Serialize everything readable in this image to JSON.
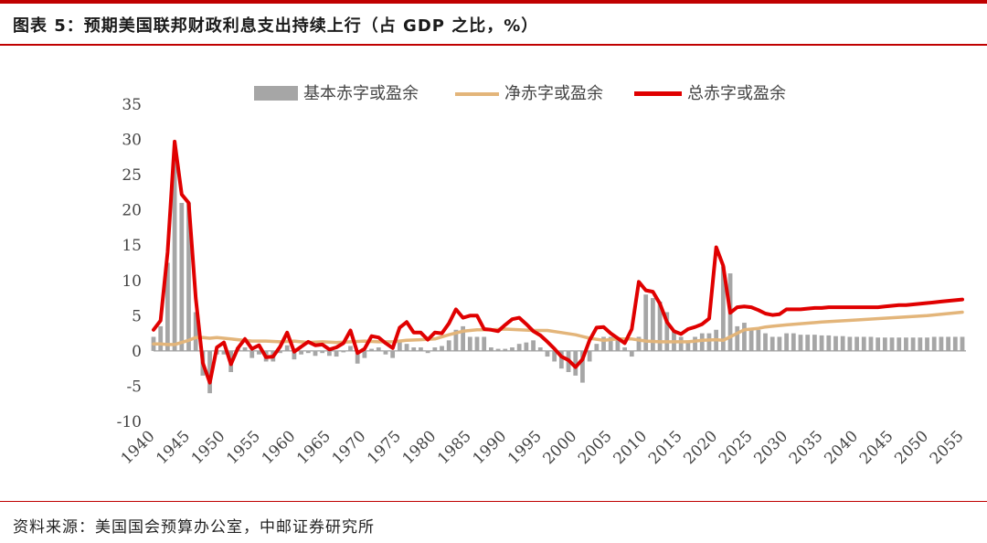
{
  "title": "图表 5：预期美国联邦财政利息支出持续上行（占 GDP 之比，%）",
  "source": "资料来源：美国国会预算办公室，中邮证券研究所",
  "colors": {
    "accent": "#c00000",
    "bar": "#a6a6a6",
    "net_line": "#e3b57a",
    "total_line": "#e00000"
  },
  "chart_data": {
    "type": "bar",
    "ylim": [
      -10,
      35
    ],
    "yticks": [
      35,
      30,
      25,
      20,
      15,
      10,
      5,
      0,
      -5,
      -10
    ],
    "xticks": [
      1940,
      1945,
      1950,
      1955,
      1960,
      1965,
      1970,
      1975,
      1980,
      1985,
      1990,
      1995,
      2000,
      2005,
      2010,
      2015,
      2020,
      2025,
      2030,
      2035,
      2040,
      2045,
      2050,
      2055
    ],
    "legend_position": "top-center",
    "grid": false,
    "series": [
      {
        "name": "基本赤字或盈余",
        "type": "bar",
        "x": [
          1940,
          1941,
          1942,
          1943,
          1944,
          1945,
          1946,
          1947,
          1948,
          1949,
          1950,
          1951,
          1952,
          1953,
          1954,
          1955,
          1956,
          1957,
          1958,
          1959,
          1960,
          1961,
          1962,
          1963,
          1964,
          1965,
          1966,
          1967,
          1968,
          1969,
          1970,
          1971,
          1972,
          1973,
          1974,
          1975,
          1976,
          1977,
          1978,
          1979,
          1980,
          1981,
          1982,
          1983,
          1984,
          1985,
          1986,
          1987,
          1988,
          1989,
          1990,
          1991,
          1992,
          1993,
          1994,
          1995,
          1996,
          1997,
          1998,
          1999,
          2000,
          2001,
          2002,
          2003,
          2004,
          2005,
          2006,
          2007,
          2008,
          2009,
          2010,
          2011,
          2012,
          2013,
          2014,
          2015,
          2016,
          2017,
          2018,
          2019,
          2020,
          2021,
          2022,
          2023,
          2024,
          2025,
          2026,
          2027,
          2028,
          2029,
          2030,
          2031,
          2032,
          2033,
          2034,
          2035,
          2036,
          2037,
          2038,
          2039,
          2040,
          2041,
          2042,
          2043,
          2044,
          2045,
          2046,
          2047,
          2048,
          2049,
          2050,
          2051,
          2052,
          2053,
          2054,
          2055
        ],
        "values": [
          2.0,
          3.5,
          12.5,
          28.5,
          21.0,
          21.0,
          5.5,
          -3.5,
          -6.0,
          -0.5,
          -0.5,
          -3.0,
          0.5,
          0.5,
          -1.0,
          -0.5,
          -1.5,
          -1.5,
          -0.3,
          0.8,
          -1.2,
          -0.5,
          -0.3,
          -0.7,
          -0.3,
          -0.7,
          -0.8,
          -0.2,
          0.7,
          -1.8,
          -1.0,
          0.3,
          0.5,
          -0.5,
          -1.0,
          1.5,
          1.0,
          0.5,
          0.5,
          -0.3,
          0.5,
          0.7,
          1.5,
          3.0,
          3.5,
          2.0,
          2.0,
          2.0,
          0.5,
          0.3,
          0.3,
          0.5,
          1.0,
          1.2,
          1.5,
          0.5,
          -0.8,
          -1.5,
          -2.5,
          -3.0,
          -3.5,
          -4.5,
          -1.5,
          1.0,
          2.0,
          2.0,
          1.5,
          0.5,
          -0.8,
          2.0,
          8.0,
          7.5,
          7.0,
          5.5,
          3.0,
          2.0,
          1.5,
          2.0,
          2.5,
          2.5,
          3.0,
          12.0,
          11.0,
          3.5,
          4.0,
          3.0,
          3.0,
          2.5,
          2.0,
          2.0,
          2.5,
          2.5,
          2.3,
          2.3,
          2.3,
          2.2,
          2.2,
          2.1,
          2.1,
          2.0,
          2.0,
          2.0,
          2.0,
          1.9,
          1.9,
          1.9,
          1.9,
          1.9,
          1.9,
          1.9,
          1.9,
          2.0,
          2.0,
          2.0,
          2.0,
          2.0
        ]
      },
      {
        "name": "净赤字或盈余",
        "type": "line",
        "x": [
          1940,
          1941,
          1942,
          1943,
          1944,
          1945,
          1946,
          1947,
          1948,
          1949,
          1950,
          1952,
          1954,
          1956,
          1958,
          1960,
          1962,
          1964,
          1966,
          1968,
          1970,
          1972,
          1974,
          1976,
          1978,
          1980,
          1982,
          1984,
          1986,
          1988,
          1990,
          1992,
          1994,
          1996,
          1998,
          2000,
          2002,
          2004,
          2006,
          2008,
          2010,
          2012,
          2014,
          2016,
          2018,
          2020,
          2021,
          2022,
          2023,
          2024,
          2025,
          2026,
          2027,
          2028,
          2029,
          2030,
          2035,
          2040,
          2045,
          2050,
          2055
        ],
        "values": [
          1.0,
          1.0,
          0.9,
          0.9,
          1.2,
          1.5,
          1.9,
          1.9,
          1.8,
          1.9,
          1.8,
          1.6,
          1.4,
          1.4,
          1.3,
          1.4,
          1.2,
          1.3,
          1.2,
          1.3,
          1.4,
          1.3,
          1.3,
          1.5,
          1.6,
          1.7,
          2.3,
          2.8,
          3.0,
          3.0,
          3.1,
          3.0,
          2.9,
          2.9,
          2.6,
          2.3,
          1.8,
          1.5,
          1.7,
          1.7,
          1.4,
          1.3,
          1.3,
          1.3,
          1.5,
          1.6,
          1.5,
          2.0,
          2.5,
          3.0,
          3.1,
          3.2,
          3.4,
          3.5,
          3.6,
          3.7,
          4.1,
          4.4,
          4.7,
          5.0,
          5.5
        ]
      },
      {
        "name": "总赤字或盈余",
        "type": "line",
        "x": [
          1940,
          1941,
          1942,
          1943,
          1944,
          1945,
          1946,
          1947,
          1948,
          1949,
          1950,
          1951,
          1952,
          1953,
          1954,
          1955,
          1956,
          1957,
          1958,
          1959,
          1960,
          1961,
          1962,
          1963,
          1964,
          1965,
          1966,
          1967,
          1968,
          1969,
          1970,
          1971,
          1972,
          1973,
          1974,
          1975,
          1976,
          1977,
          1978,
          1979,
          1980,
          1981,
          1982,
          1983,
          1984,
          1985,
          1986,
          1987,
          1988,
          1989,
          1990,
          1991,
          1992,
          1993,
          1994,
          1995,
          1996,
          1997,
          1998,
          1999,
          2000,
          2001,
          2002,
          2003,
          2004,
          2005,
          2006,
          2007,
          2008,
          2009,
          2010,
          2011,
          2012,
          2013,
          2014,
          2015,
          2016,
          2017,
          2018,
          2019,
          2020,
          2021,
          2022,
          2023,
          2024,
          2025,
          2026,
          2027,
          2028,
          2029,
          2030,
          2031,
          2032,
          2033,
          2034,
          2035,
          2036,
          2037,
          2038,
          2039,
          2040,
          2041,
          2042,
          2043,
          2044,
          2045,
          2046,
          2047,
          2048,
          2049,
          2050,
          2051,
          2052,
          2053,
          2054,
          2055
        ],
        "values": [
          3.0,
          4.3,
          14.0,
          29.7,
          22.2,
          21.0,
          7.5,
          -1.7,
          -4.5,
          0.5,
          1.2,
          -1.9,
          0.4,
          1.7,
          0.3,
          0.8,
          -0.9,
          -0.8,
          0.6,
          2.6,
          -0.1,
          0.6,
          1.3,
          0.8,
          0.9,
          0.2,
          0.5,
          1.1,
          2.9,
          -0.3,
          0.3,
          2.1,
          1.9,
          1.1,
          0.4,
          3.3,
          4.1,
          2.6,
          2.6,
          1.6,
          2.6,
          2.5,
          3.9,
          5.9,
          4.7,
          5.0,
          5.0,
          3.1,
          3.0,
          2.8,
          3.7,
          4.5,
          4.7,
          3.8,
          2.8,
          2.2,
          1.3,
          0.3,
          -0.8,
          -1.3,
          -2.3,
          -1.2,
          1.5,
          3.3,
          3.4,
          2.5,
          1.8,
          1.1,
          3.1,
          9.8,
          8.6,
          8.4,
          6.7,
          4.1,
          2.8,
          2.4,
          3.1,
          3.4,
          3.8,
          4.6,
          14.7,
          12.1,
          5.4,
          6.2,
          6.3,
          6.2,
          5.8,
          5.3,
          5.1,
          5.2,
          5.9,
          5.9,
          5.9,
          6.0,
          6.1,
          6.1,
          6.2,
          6.2,
          6.2,
          6.2,
          6.2,
          6.2,
          6.2,
          6.2,
          6.3,
          6.4,
          6.5,
          6.5,
          6.6,
          6.7,
          6.8,
          6.9,
          7.0,
          7.1,
          7.2,
          7.3
        ]
      }
    ]
  }
}
